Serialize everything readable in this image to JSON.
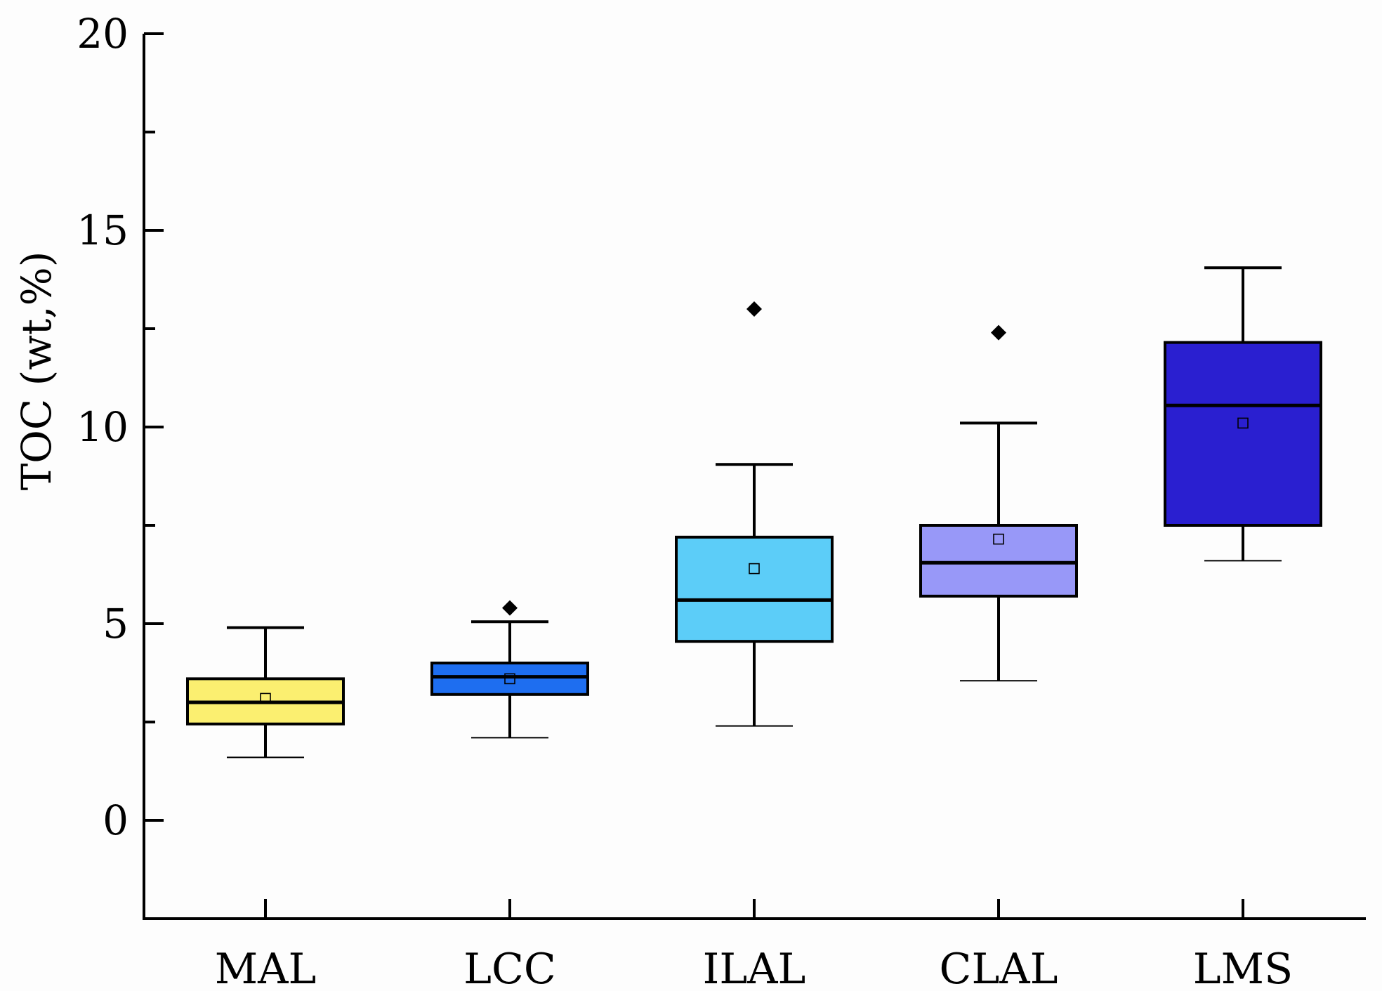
{
  "chart_data": {
    "type": "box",
    "title": "",
    "xlabel": "",
    "ylabel": "TOC (wt,%)",
    "ylim": [
      -2.5,
      20
    ],
    "yticks": [
      0,
      5,
      10,
      15,
      20
    ],
    "yminor_ticks": [
      2.5,
      7.5,
      12.5,
      17.5
    ],
    "categories": [
      "MAL",
      "LCC",
      "ILAL",
      "CLAL",
      "LMS"
    ],
    "series": [
      {
        "name": "MAL",
        "color": "#fbef70",
        "min": 1.6,
        "q1": 2.45,
        "median": 3.0,
        "q3": 3.6,
        "max": 4.9,
        "mean": 3.1,
        "outliers": []
      },
      {
        "name": "LCC",
        "color": "#1e6ef0",
        "min": 2.1,
        "q1": 3.2,
        "median": 3.65,
        "q3": 4.0,
        "max": 5.05,
        "mean": 3.6,
        "outliers": [
          5.4
        ]
      },
      {
        "name": "ILAL",
        "color": "#5ccdf8",
        "min": 2.4,
        "q1": 4.55,
        "median": 5.6,
        "q3": 7.2,
        "max": 9.05,
        "mean": 6.4,
        "outliers": [
          13.0
        ]
      },
      {
        "name": "CLAL",
        "color": "#9898f8",
        "min": 3.55,
        "q1": 5.7,
        "median": 6.55,
        "q3": 7.5,
        "max": 10.1,
        "mean": 7.15,
        "outliers": [
          12.4
        ]
      },
      {
        "name": "LMS",
        "color": "#2a1fd0",
        "min": 6.6,
        "q1": 7.5,
        "median": 10.55,
        "q3": 12.15,
        "max": 14.05,
        "mean": 10.1,
        "outliers": []
      }
    ]
  }
}
